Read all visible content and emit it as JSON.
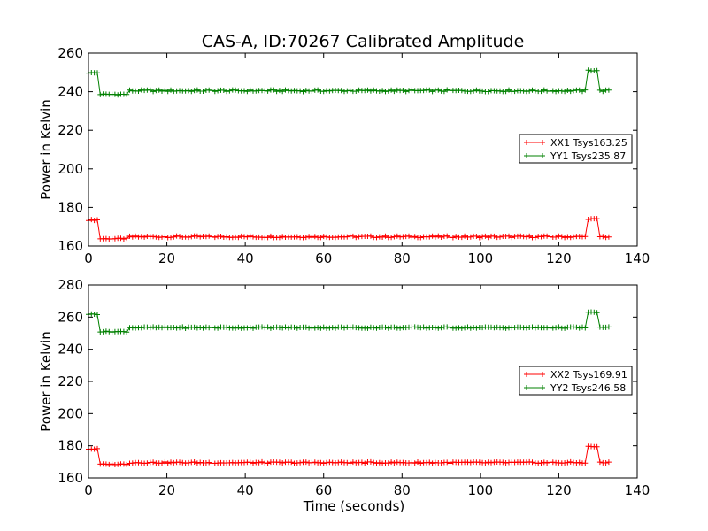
{
  "figure": {
    "title": "CAS-A, ID:70267 Calibrated Amplitude"
  },
  "chart_data": [
    {
      "type": "line",
      "ylabel": "Power in Kelvin",
      "xlabel": "",
      "xlim": [
        0,
        140
      ],
      "ylim": [
        160,
        260
      ],
      "xticks": [
        "0",
        "20",
        "40",
        "60",
        "80",
        "100",
        "120",
        "140"
      ],
      "yticks": [
        "160",
        "180",
        "200",
        "220",
        "240",
        "260"
      ],
      "grid": false,
      "legend": "center-right",
      "x_range": [
        0,
        133
      ],
      "series": [
        {
          "name": "XX1 Tsys163.25",
          "color": "#ff0000",
          "marker": "+",
          "baseline": 164.8,
          "segments": [
            {
              "from": 0,
              "to": 3,
              "value": 173.5
            },
            {
              "from": 3,
              "to": 10,
              "value": 163.8
            },
            {
              "from": 127,
              "to": 130,
              "value": 174.0
            }
          ]
        },
        {
          "name": "YY1 Tsys235.87",
          "color": "#008000",
          "marker": "+",
          "baseline": 240.5,
          "segments": [
            {
              "from": 0,
              "to": 3,
              "value": 249.8
            },
            {
              "from": 3,
              "to": 10,
              "value": 238.6
            },
            {
              "from": 127,
              "to": 130,
              "value": 251.0
            }
          ]
        }
      ]
    },
    {
      "type": "line",
      "ylabel": "Power in Kelvin",
      "xlabel": "Time (seconds)",
      "xlim": [
        0,
        140
      ],
      "ylim": [
        160,
        280
      ],
      "xticks": [
        "0",
        "20",
        "40",
        "60",
        "80",
        "100",
        "120",
        "140"
      ],
      "yticks": [
        "160",
        "180",
        "200",
        "220",
        "240",
        "260",
        "280"
      ],
      "grid": false,
      "legend": "center-right",
      "x_range": [
        0,
        133
      ],
      "series": [
        {
          "name": "XX2 Tsys169.91",
          "color": "#ff0000",
          "marker": "+",
          "baseline": 169.5,
          "segments": [
            {
              "from": 0,
              "to": 3,
              "value": 178.0
            },
            {
              "from": 3,
              "to": 10,
              "value": 168.5
            },
            {
              "from": 127,
              "to": 130,
              "value": 179.5
            }
          ]
        },
        {
          "name": "YY2 Tsys246.58",
          "color": "#008000",
          "marker": "+",
          "baseline": 253.5,
          "segments": [
            {
              "from": 0,
              "to": 3,
              "value": 261.8
            },
            {
              "from": 3,
              "to": 10,
              "value": 251.0
            },
            {
              "from": 127,
              "to": 130,
              "value": 263.0
            }
          ]
        }
      ]
    }
  ]
}
